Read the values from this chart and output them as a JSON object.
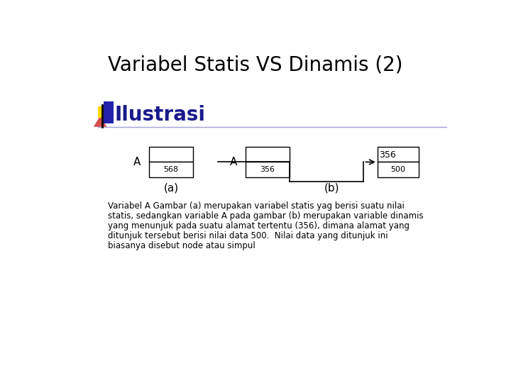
{
  "title": "Variabel Statis VS Dinamis (2)",
  "subtitle": "Ilustrasi",
  "bg_color": "#ffffff",
  "title_fontsize": 20,
  "subtitle_fontsize": 20,
  "subtitle_color": "#1a1a8c",
  "box_a_label": "A",
  "box_a_value": "568",
  "box_b_label": "A",
  "box_b_value_ptr": "356",
  "box_b_node_value": "500",
  "box_b_arrow_label": "356",
  "caption_a": "(a)",
  "caption_b": "(b)",
  "description": "Variabel A Gambar (a) merupakan variabel statis yag berisi suatu nilai\nstatis, sedangkan variable A pada gambar (b) merupakan variable dinamis\nyang menunjuk pada suatu alamat tertentu (356), dimana alamat yang\nditunjuk tersebut berisi nilai data 500.  Nilai data yang ditunjuk ini\nbiasanya disebut node atau simpul"
}
